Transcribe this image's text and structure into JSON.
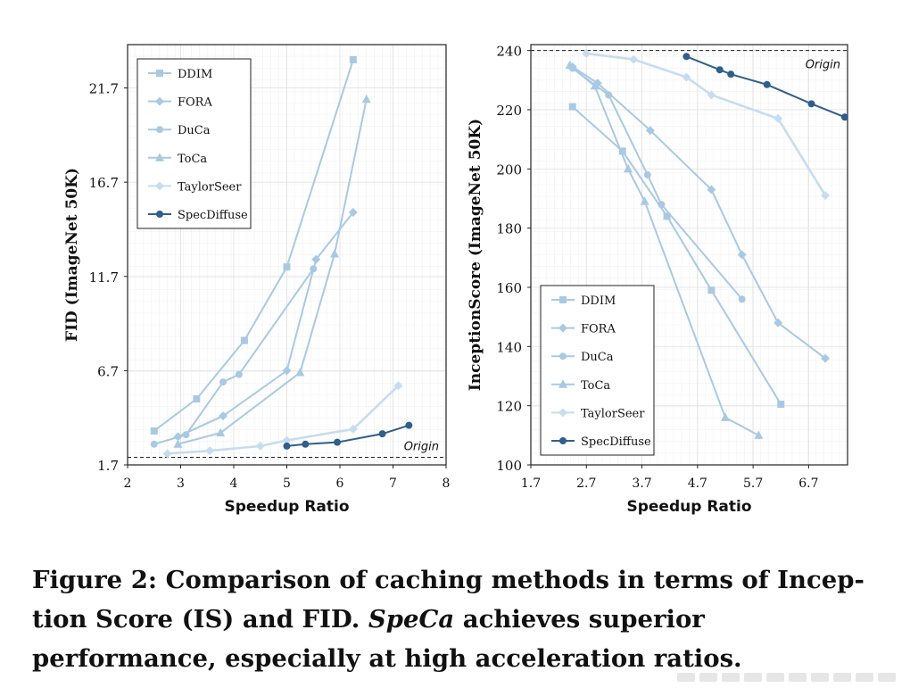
{
  "caption": {
    "prefix": "Figure 2: Comparison of caching methods in terms of Incep-tion Score (IS) and FID. ",
    "emphasis": "SpeCa",
    "suffix": " achieves superior performance, especially at high acceleration ratios."
  },
  "colors": {
    "DDIM": "#a9c9e3",
    "FORA": "#a9c9e3",
    "DuCa": "#a9c9e3",
    "ToCa": "#a9c9e3",
    "TaylorSeer": "#c7ddef",
    "SpecDiffuse": "#2f5f8a",
    "grid": "#e3e3e3",
    "text": "#111111"
  },
  "chart_data": [
    {
      "type": "line",
      "xlabel": "Speedup Ratio",
      "ylabel": "FID  (ImageNet 50K)",
      "xlim": [
        2,
        8
      ],
      "ylim": [
        1.7,
        24
      ],
      "xticks": [
        2,
        3,
        4,
        5,
        6,
        7,
        8
      ],
      "yticks": [
        1.7,
        6.7,
        11.7,
        16.7,
        21.7
      ],
      "ytick_labels": [
        "1.7",
        "6.7",
        "11.7",
        "16.7",
        "21.7"
      ],
      "grid": true,
      "legend_position": "top-left",
      "reference": {
        "label": "Origin",
        "y": 2.1
      },
      "series": [
        {
          "name": "DDIM",
          "marker": "square",
          "points": [
            [
              2.5,
              3.5
            ],
            [
              3.3,
              5.2
            ],
            [
              4.2,
              8.3
            ],
            [
              5.0,
              12.2
            ],
            [
              6.25,
              23.2
            ]
          ]
        },
        {
          "name": "FORA",
          "marker": "diamond",
          "points": [
            [
              2.95,
              3.2
            ],
            [
              3.8,
              4.3
            ],
            [
              5.0,
              6.7
            ],
            [
              5.55,
              12.6
            ],
            [
              6.25,
              15.1
            ]
          ]
        },
        {
          "name": "DuCa",
          "marker": "circle",
          "points": [
            [
              2.5,
              2.8
            ],
            [
              3.1,
              3.3
            ],
            [
              3.8,
              6.1
            ],
            [
              4.1,
              6.5
            ],
            [
              5.5,
              12.1
            ]
          ]
        },
        {
          "name": "ToCa",
          "marker": "triangle",
          "points": [
            [
              2.95,
              2.8
            ],
            [
              3.75,
              3.4
            ],
            [
              5.25,
              6.6
            ],
            [
              5.9,
              12.9
            ],
            [
              6.5,
              21.1
            ]
          ]
        },
        {
          "name": "TaylorSeer",
          "marker": "diamond",
          "points": [
            [
              2.75,
              2.3
            ],
            [
              3.55,
              2.45
            ],
            [
              4.5,
              2.7
            ],
            [
              5.0,
              3.0
            ],
            [
              6.25,
              3.6
            ],
            [
              7.1,
              5.9
            ]
          ]
        },
        {
          "name": "SpecDiffuse",
          "marker": "circle",
          "points": [
            [
              5.0,
              2.7
            ],
            [
              5.35,
              2.8
            ],
            [
              5.95,
              2.9
            ],
            [
              6.8,
              3.35
            ],
            [
              7.3,
              3.8
            ]
          ]
        }
      ]
    },
    {
      "type": "line",
      "xlabel": "Speedup Ratio",
      "ylabel": "InceptionScore  (ImageNet 50K)",
      "xlim": [
        1.7,
        7.4
      ],
      "ylim": [
        100,
        242
      ],
      "xticks": [
        1.7,
        2.7,
        3.7,
        4.7,
        5.7,
        6.7
      ],
      "xtick_labels": [
        "1.7",
        "2.7",
        "3.7",
        "4.7",
        "5.7",
        "6.7"
      ],
      "yticks": [
        100,
        120,
        140,
        160,
        180,
        200,
        220,
        240
      ],
      "grid": true,
      "legend_position": "bottom-left",
      "reference": {
        "label": "Origin",
        "y": 240
      },
      "series": [
        {
          "name": "DDIM",
          "marker": "square",
          "points": [
            [
              2.45,
              221
            ],
            [
              3.35,
              206
            ],
            [
              4.15,
              184
            ],
            [
              4.95,
              159
            ],
            [
              6.2,
              120.5
            ]
          ]
        },
        {
          "name": "FORA",
          "marker": "diamond",
          "points": [
            [
              2.45,
              234.5
            ],
            [
              2.9,
              229
            ],
            [
              3.85,
              213
            ],
            [
              4.95,
              193
            ],
            [
              5.5,
              171
            ],
            [
              6.15,
              148
            ],
            [
              7.0,
              136
            ]
          ]
        },
        {
          "name": "DuCa",
          "marker": "circle",
          "points": [
            [
              2.45,
              234
            ],
            [
              3.1,
              225
            ],
            [
              3.8,
              198
            ],
            [
              4.05,
              188
            ],
            [
              5.5,
              156
            ]
          ]
        },
        {
          "name": "ToCa",
          "marker": "triangle",
          "points": [
            [
              2.4,
              235
            ],
            [
              2.85,
              228
            ],
            [
              3.45,
              200
            ],
            [
              3.75,
              189
            ],
            [
              5.2,
              116
            ],
            [
              5.8,
              110
            ]
          ]
        },
        {
          "name": "TaylorSeer",
          "marker": "diamond",
          "points": [
            [
              2.7,
              239
            ],
            [
              3.55,
              237
            ],
            [
              4.5,
              231
            ],
            [
              4.95,
              225
            ],
            [
              6.15,
              217
            ],
            [
              7.0,
              191
            ]
          ]
        },
        {
          "name": "SpecDiffuse",
          "marker": "circle",
          "points": [
            [
              4.5,
              238
            ],
            [
              5.1,
              233.5
            ],
            [
              5.3,
              232
            ],
            [
              5.95,
              228.5
            ],
            [
              6.75,
              222
            ],
            [
              7.35,
              217.5
            ]
          ]
        }
      ]
    }
  ]
}
